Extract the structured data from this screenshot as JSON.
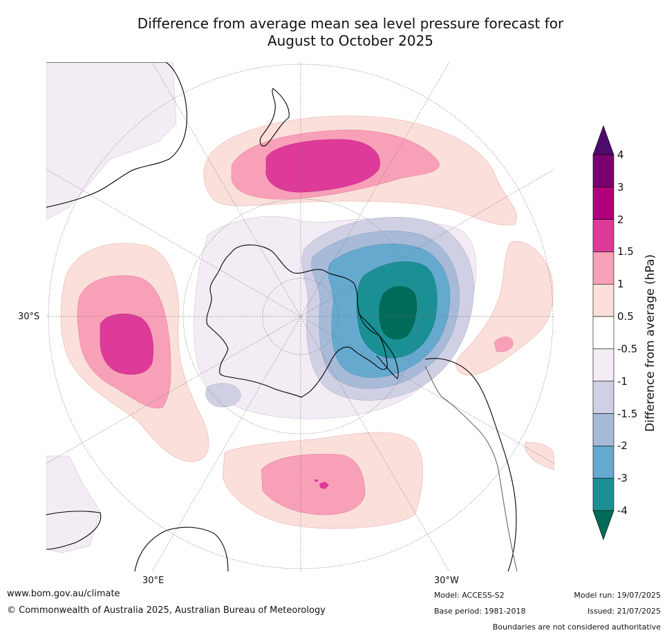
{
  "title_line1": "Difference from average mean sea level pressure forecast for",
  "title_line2": "August to October 2025",
  "labels": {
    "lat_30s": "30°S",
    "lon_30e": "30°E",
    "lon_30w": "30°W"
  },
  "colorbar": {
    "title": "Difference from average (hPa)",
    "ticks": [
      "4",
      "3",
      "2",
      "1.5",
      "1",
      "0.5",
      "-0.5",
      "-1",
      "-1.5",
      "-2",
      "-3",
      "-4"
    ],
    "colors": [
      "#4d0b6b",
      "#7b0070",
      "#b0007c",
      "#de3a9a",
      "#f8a0b8",
      "#fbdfdb",
      "#ffffff",
      "#f3ecf4",
      "#d0d0e4",
      "#a7bbd9",
      "#66a9cf",
      "#1a9094",
      "#006b58"
    ]
  },
  "footer": {
    "website": "www.bom.gov.au/climate",
    "copyright": "© Commonwealth of Australia 2025, Australian Bureau of Meteorology",
    "model": "Model: ACCESS-S2",
    "base_period": "Base period: 1981-2018",
    "model_run": "Model run: 19/07/2025",
    "issued": "Issued: 21/07/2025",
    "disclaimer": "Boundaries are not considered authoritative"
  }
}
